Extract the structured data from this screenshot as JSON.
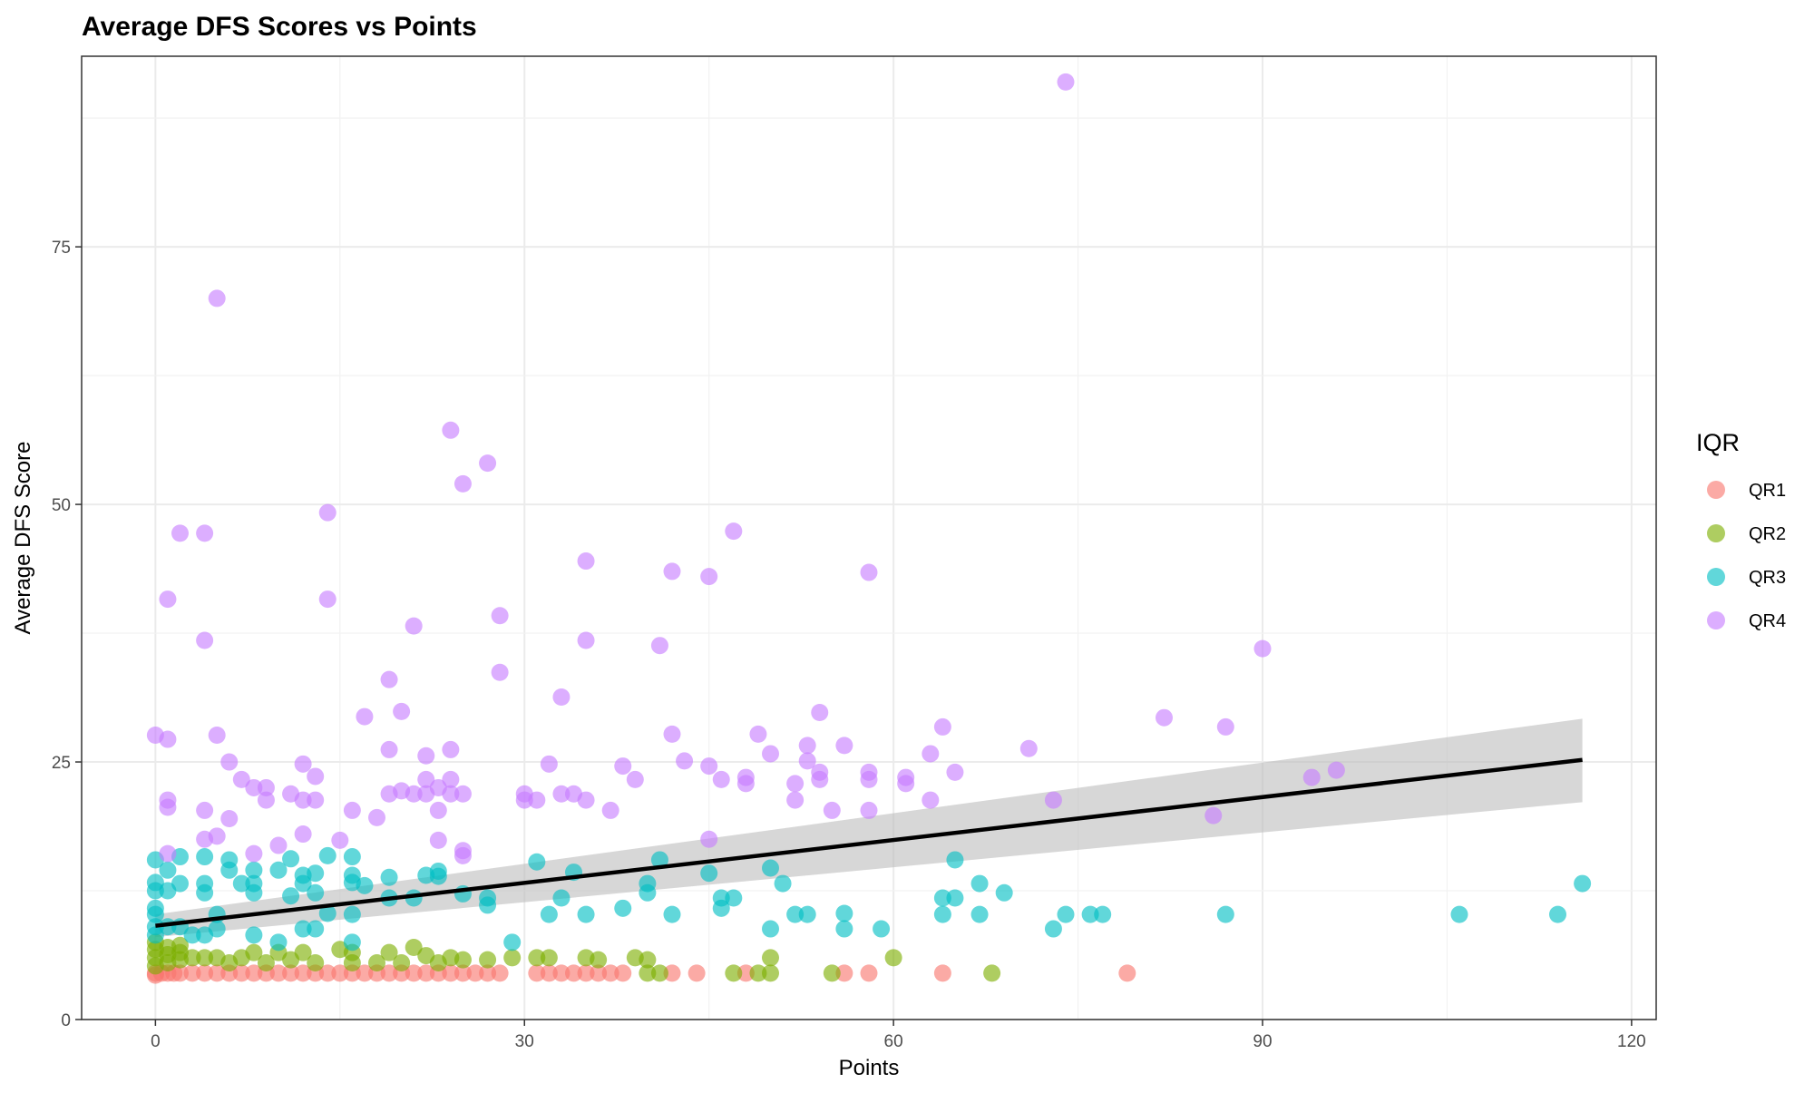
{
  "chart_data": {
    "type": "scatter",
    "title": "Average DFS Scores vs Points",
    "xlabel": "Points",
    "ylabel": "Average DFS Score",
    "xlim": [
      -6,
      122
    ],
    "ylim": [
      0,
      93.5
    ],
    "x_ticks": [
      0,
      30,
      60,
      90,
      120
    ],
    "y_ticks": [
      0,
      25,
      50,
      75
    ],
    "grid": true,
    "legend": {
      "title": "IQR",
      "position": "right"
    },
    "series": [
      {
        "name": "QR1",
        "color": "#F8766D",
        "points": [
          [
            0,
            4.5
          ],
          [
            0,
            4.3
          ],
          [
            0.5,
            4.5
          ],
          [
            1,
            4.5
          ],
          [
            1.5,
            4.5
          ],
          [
            2,
            4.5
          ],
          [
            3,
            4.5
          ],
          [
            4,
            4.5
          ],
          [
            5,
            4.5
          ],
          [
            6,
            4.5
          ],
          [
            7,
            4.5
          ],
          [
            8,
            4.5
          ],
          [
            9,
            4.5
          ],
          [
            10,
            4.5
          ],
          [
            11,
            4.5
          ],
          [
            12,
            4.5
          ],
          [
            13,
            4.5
          ],
          [
            14,
            4.5
          ],
          [
            15,
            4.5
          ],
          [
            16,
            4.5
          ],
          [
            17,
            4.5
          ],
          [
            18,
            4.5
          ],
          [
            19,
            4.5
          ],
          [
            20,
            4.5
          ],
          [
            21,
            4.5
          ],
          [
            22,
            4.5
          ],
          [
            23,
            4.5
          ],
          [
            24,
            4.5
          ],
          [
            25,
            4.5
          ],
          [
            26,
            4.5
          ],
          [
            27,
            4.5
          ],
          [
            28,
            4.5
          ],
          [
            31,
            4.5
          ],
          [
            32,
            4.5
          ],
          [
            33,
            4.5
          ],
          [
            34,
            4.5
          ],
          [
            35,
            4.5
          ],
          [
            36,
            4.5
          ],
          [
            37,
            4.5
          ],
          [
            38,
            4.5
          ],
          [
            42,
            4.5
          ],
          [
            44,
            4.5
          ],
          [
            48,
            4.5
          ],
          [
            56,
            4.5
          ],
          [
            58,
            4.5
          ],
          [
            64,
            4.5
          ],
          [
            79,
            4.5
          ]
        ]
      },
      {
        "name": "QR2",
        "color": "#7CAE00",
        "points": [
          [
            0,
            5.2
          ],
          [
            0,
            6.0
          ],
          [
            0,
            6.8
          ],
          [
            0,
            7.5
          ],
          [
            1,
            5.5
          ],
          [
            1,
            6.3
          ],
          [
            1,
            7.0
          ],
          [
            2,
            5.8
          ],
          [
            2,
            6.5
          ],
          [
            2,
            7.2
          ],
          [
            3,
            6.0
          ],
          [
            4,
            6.0
          ],
          [
            5,
            6.0
          ],
          [
            6,
            5.5
          ],
          [
            7,
            6.0
          ],
          [
            8,
            6.5
          ],
          [
            9,
            5.5
          ],
          [
            10,
            6.5
          ],
          [
            11,
            5.8
          ],
          [
            12,
            6.5
          ],
          [
            13,
            5.5
          ],
          [
            15,
            6.8
          ],
          [
            16,
            5.5
          ],
          [
            16,
            6.5
          ],
          [
            18,
            5.5
          ],
          [
            19,
            6.5
          ],
          [
            20,
            5.5
          ],
          [
            21,
            7.0
          ],
          [
            22,
            6.2
          ],
          [
            23,
            5.5
          ],
          [
            24,
            6.0
          ],
          [
            25,
            5.8
          ],
          [
            27,
            5.8
          ],
          [
            29,
            6.0
          ],
          [
            31,
            6.0
          ],
          [
            32,
            6.0
          ],
          [
            35,
            6.0
          ],
          [
            36,
            5.8
          ],
          [
            39,
            6.0
          ],
          [
            40,
            4.5
          ],
          [
            40,
            5.8
          ],
          [
            41,
            4.5
          ],
          [
            47,
            4.5
          ],
          [
            49,
            4.5
          ],
          [
            50,
            4.5
          ],
          [
            50,
            6.0
          ],
          [
            55,
            4.5
          ],
          [
            60,
            6.0
          ],
          [
            68,
            4.5
          ]
        ]
      },
      {
        "name": "QR3",
        "color": "#00BFC4",
        "points": [
          [
            0,
            15.5
          ],
          [
            0,
            13.3
          ],
          [
            0,
            12.5
          ],
          [
            0,
            10.8
          ],
          [
            0,
            10.2
          ],
          [
            0,
            9.0
          ],
          [
            0,
            8.2
          ],
          [
            1,
            14.5
          ],
          [
            1,
            12.5
          ],
          [
            1,
            9.0
          ],
          [
            2,
            15.8
          ],
          [
            2,
            13.2
          ],
          [
            2,
            9.0
          ],
          [
            3,
            8.2
          ],
          [
            4,
            15.8
          ],
          [
            4,
            13.2
          ],
          [
            4,
            12.3
          ],
          [
            4,
            8.2
          ],
          [
            5,
            10.2
          ],
          [
            5,
            8.8
          ],
          [
            6,
            15.5
          ],
          [
            6,
            14.5
          ],
          [
            7,
            13.2
          ],
          [
            8,
            14.5
          ],
          [
            8,
            13.2
          ],
          [
            8,
            12.3
          ],
          [
            8,
            8.2
          ],
          [
            10,
            14.5
          ],
          [
            10,
            7.5
          ],
          [
            11,
            15.6
          ],
          [
            11,
            12.0
          ],
          [
            12,
            14.0
          ],
          [
            12,
            13.2
          ],
          [
            12,
            8.8
          ],
          [
            13,
            14.2
          ],
          [
            13,
            12.3
          ],
          [
            13,
            8.8
          ],
          [
            14,
            15.9
          ],
          [
            14,
            10.3
          ],
          [
            16,
            15.8
          ],
          [
            16,
            14.0
          ],
          [
            16,
            13.3
          ],
          [
            16,
            10.2
          ],
          [
            16,
            7.5
          ],
          [
            17,
            13.0
          ],
          [
            19,
            13.8
          ],
          [
            19,
            11.8
          ],
          [
            21,
            11.8
          ],
          [
            22,
            14.0
          ],
          [
            23,
            14.4
          ],
          [
            23,
            13.9
          ],
          [
            25,
            12.2
          ],
          [
            27,
            11.8
          ],
          [
            27,
            11.1
          ],
          [
            29,
            7.5
          ],
          [
            31,
            15.3
          ],
          [
            32,
            10.2
          ],
          [
            33,
            11.8
          ],
          [
            34,
            14.3
          ],
          [
            35,
            10.2
          ],
          [
            38,
            10.8
          ],
          [
            40,
            13.2
          ],
          [
            40,
            12.3
          ],
          [
            41,
            15.5
          ],
          [
            42,
            10.2
          ],
          [
            45,
            14.2
          ],
          [
            46,
            11.8
          ],
          [
            46,
            10.8
          ],
          [
            47,
            11.8
          ],
          [
            50,
            14.7
          ],
          [
            50,
            8.8
          ],
          [
            51,
            13.2
          ],
          [
            52,
            10.2
          ],
          [
            53,
            10.2
          ],
          [
            56,
            10.3
          ],
          [
            56,
            8.8
          ],
          [
            59,
            8.8
          ],
          [
            64,
            11.8
          ],
          [
            64,
            10.2
          ],
          [
            65,
            15.5
          ],
          [
            65,
            11.8
          ],
          [
            67,
            13.2
          ],
          [
            67,
            10.2
          ],
          [
            69,
            12.3
          ],
          [
            73,
            8.8
          ],
          [
            74,
            10.2
          ],
          [
            76,
            10.2
          ],
          [
            77,
            10.2
          ],
          [
            87,
            10.2
          ],
          [
            106,
            10.2
          ],
          [
            114,
            10.2
          ],
          [
            116,
            13.2
          ]
        ]
      },
      {
        "name": "QR4",
        "color": "#C77CFF",
        "points": [
          [
            74,
            91.0
          ],
          [
            5,
            70.0
          ],
          [
            24,
            57.2
          ],
          [
            27,
            54.0
          ],
          [
            25,
            52.0
          ],
          [
            14,
            49.2
          ],
          [
            2,
            47.2
          ],
          [
            4,
            47.2
          ],
          [
            47,
            47.4
          ],
          [
            35,
            44.5
          ],
          [
            42,
            43.5
          ],
          [
            45,
            43.0
          ],
          [
            58,
            43.4
          ],
          [
            1,
            40.8
          ],
          [
            14,
            40.8
          ],
          [
            28,
            39.2
          ],
          [
            21,
            38.2
          ],
          [
            4,
            36.8
          ],
          [
            35,
            36.8
          ],
          [
            41,
            36.3
          ],
          [
            90,
            36.0
          ],
          [
            28,
            33.7
          ],
          [
            19,
            33.0
          ],
          [
            33,
            31.3
          ],
          [
            20,
            29.9
          ],
          [
            17,
            29.4
          ],
          [
            54,
            29.8
          ],
          [
            82,
            29.3
          ],
          [
            64,
            28.4
          ],
          [
            87,
            28.4
          ],
          [
            0,
            27.6
          ],
          [
            1,
            27.2
          ],
          [
            5,
            27.6
          ],
          [
            42,
            27.7
          ],
          [
            49,
            27.7
          ],
          [
            53,
            26.6
          ],
          [
            56,
            26.6
          ],
          [
            71,
            26.3
          ],
          [
            19,
            26.2
          ],
          [
            24,
            26.2
          ],
          [
            63,
            25.8
          ],
          [
            50,
            25.8
          ],
          [
            6,
            25.0
          ],
          [
            12,
            24.8
          ],
          [
            32,
            24.8
          ],
          [
            43,
            25.1
          ],
          [
            53,
            25.1
          ],
          [
            22,
            25.6
          ],
          [
            38,
            24.6
          ],
          [
            45,
            24.6
          ],
          [
            54,
            24.0
          ],
          [
            58,
            24.0
          ],
          [
            65,
            24.0
          ],
          [
            96,
            24.2
          ],
          [
            94,
            23.5
          ],
          [
            7,
            23.3
          ],
          [
            13,
            23.6
          ],
          [
            22,
            23.3
          ],
          [
            24,
            23.3
          ],
          [
            39,
            23.3
          ],
          [
            46,
            23.3
          ],
          [
            48,
            23.5
          ],
          [
            54,
            23.3
          ],
          [
            58,
            23.3
          ],
          [
            61,
            23.5
          ],
          [
            8,
            22.5
          ],
          [
            9,
            22.5
          ],
          [
            11,
            21.9
          ],
          [
            19,
            21.9
          ],
          [
            20,
            22.2
          ],
          [
            21,
            21.9
          ],
          [
            22,
            21.9
          ],
          [
            23,
            22.5
          ],
          [
            24,
            21.9
          ],
          [
            25,
            21.9
          ],
          [
            30,
            21.9
          ],
          [
            33,
            21.9
          ],
          [
            34,
            21.9
          ],
          [
            48,
            22.9
          ],
          [
            52,
            22.9
          ],
          [
            61,
            22.9
          ],
          [
            1,
            21.3
          ],
          [
            9,
            21.3
          ],
          [
            12,
            21.3
          ],
          [
            13,
            21.3
          ],
          [
            30,
            21.3
          ],
          [
            31,
            21.3
          ],
          [
            35,
            21.3
          ],
          [
            52,
            21.3
          ],
          [
            63,
            21.3
          ],
          [
            73,
            21.3
          ],
          [
            1,
            20.6
          ],
          [
            4,
            20.3
          ],
          [
            16,
            20.3
          ],
          [
            23,
            20.3
          ],
          [
            37,
            20.3
          ],
          [
            55,
            20.3
          ],
          [
            58,
            20.3
          ],
          [
            86,
            19.8
          ],
          [
            6,
            19.5
          ],
          [
            18,
            19.6
          ],
          [
            10,
            16.9
          ],
          [
            4,
            17.5
          ],
          [
            5,
            17.8
          ],
          [
            12,
            18.0
          ],
          [
            15,
            17.4
          ],
          [
            23,
            17.4
          ],
          [
            45,
            17.5
          ],
          [
            1,
            16.1
          ],
          [
            8,
            16.1
          ],
          [
            25,
            16.4
          ],
          [
            25,
            15.9
          ]
        ]
      }
    ],
    "trend_line": {
      "type": "linear fit",
      "color": "#000000",
      "band_color": "#bdbdbd",
      "x": [
        0,
        116
      ],
      "y": [
        9.1,
        25.2
      ],
      "ci_lower": [
        8.0,
        21.1
      ],
      "ci_upper": [
        10.2,
        29.2
      ]
    }
  }
}
